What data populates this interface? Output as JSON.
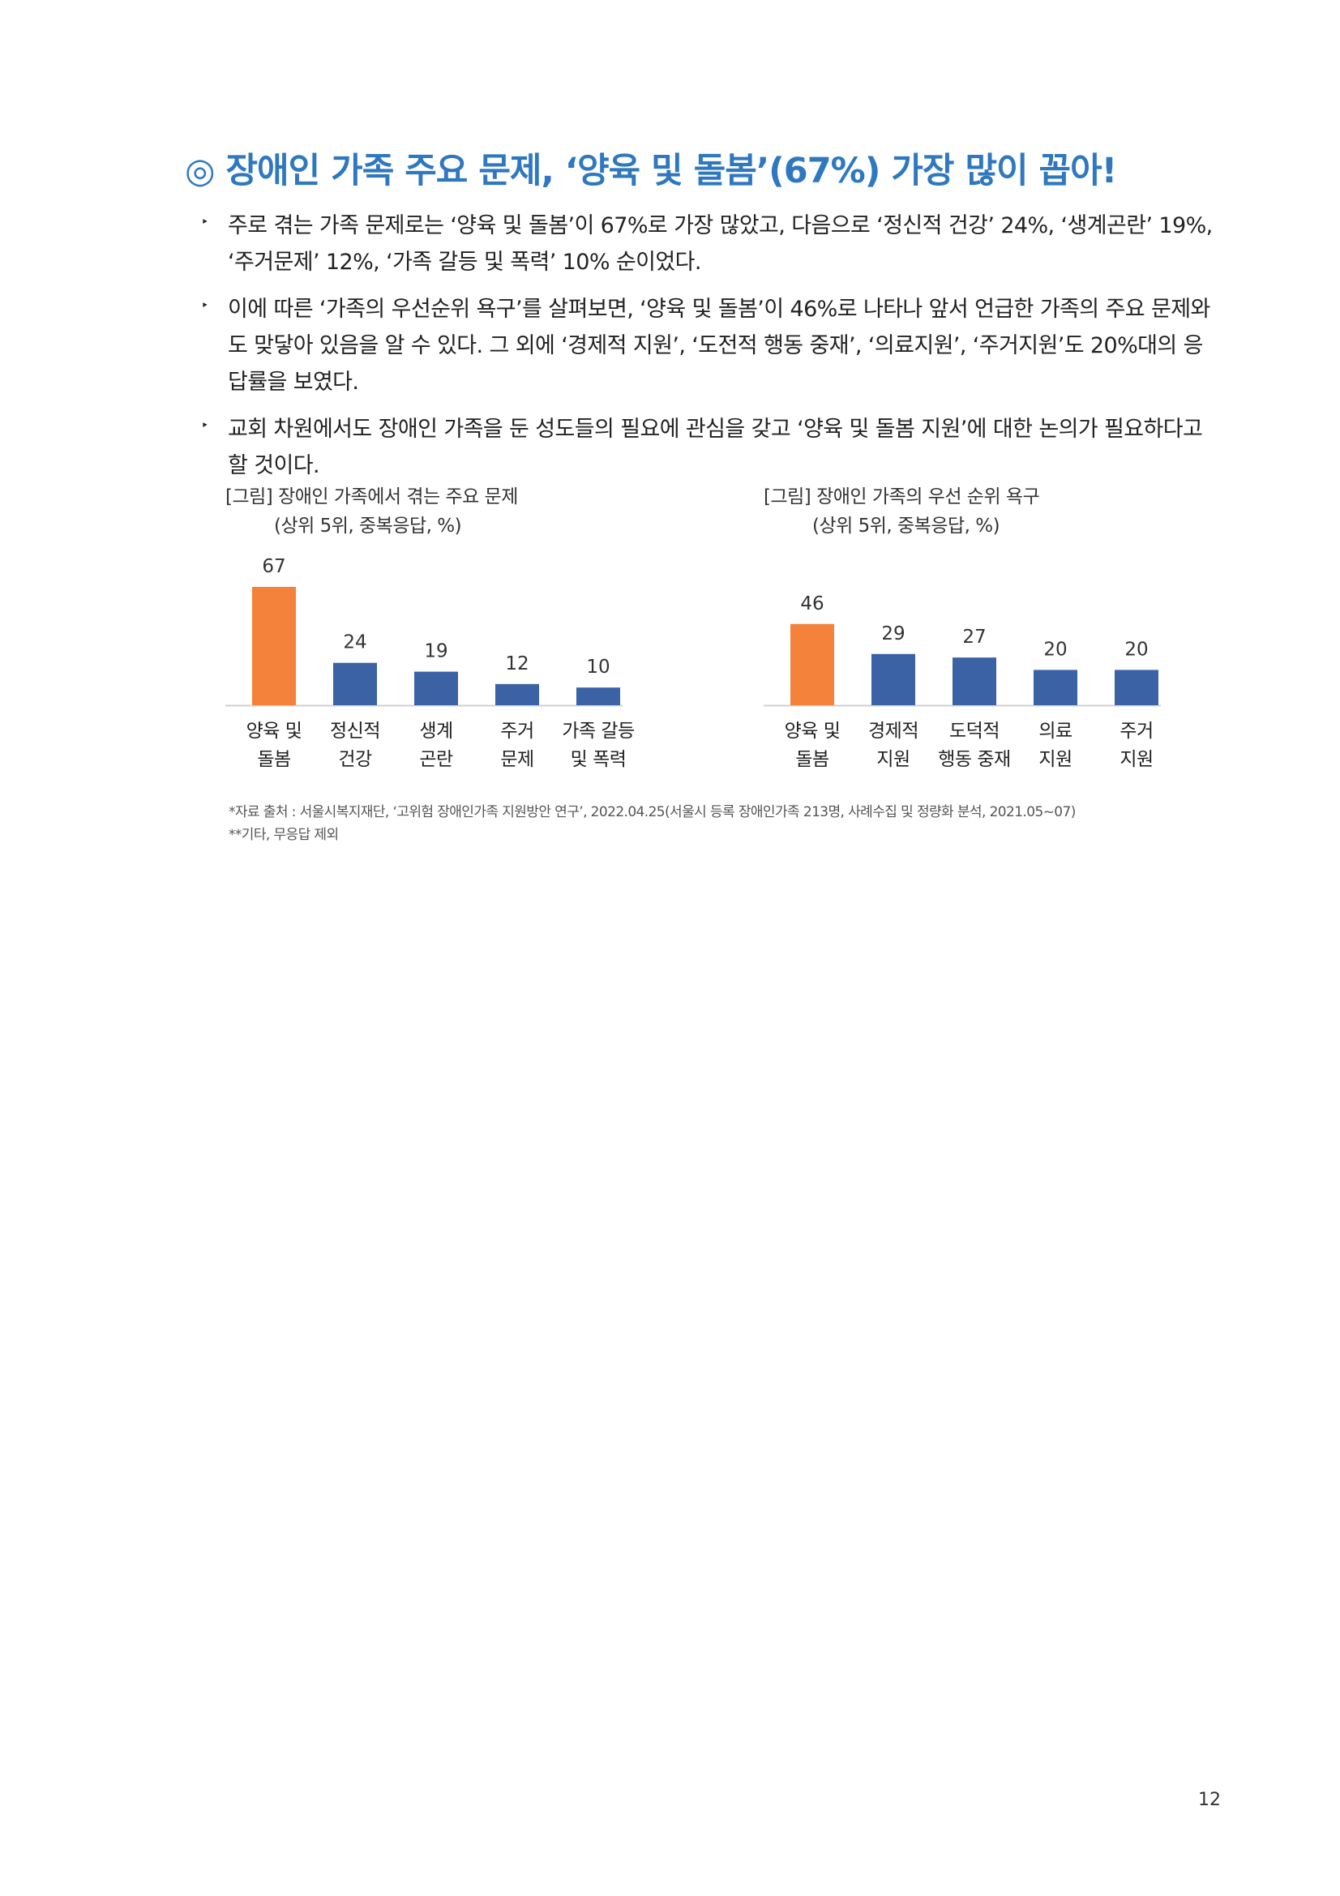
{
  "heading": "◎ 장애인 가족 주요 문제, ‘양육 및 돌봄’(67%) 가장 많이 꼽아!",
  "bullets": [
    {
      "marker": "‣",
      "text": "주로 겪는 가족 문제로는 ‘양육 및 돌봄’이 67%로 가장 많았고, 다음으로 ‘정신적 건강’ 24%, ‘생계곤란’ 19%, ‘주거문제’ 12%, ‘가족 갈등 및 폭력’ 10% 순이었다."
    },
    {
      "marker": "‣",
      "text": "이에 따른 ‘가족의 우선순위 욕구’를 살펴보면, ‘양육 및 돌봄’이 46%로 나타나 앞서 언급한 가족의 주요 문제와도 맞닿아 있음을 알 수 있다. 그 외에 ‘경제적 지원’, ‘도전적 행동 중재’, ‘의료지원’, ‘주거지원’도 20%대의 응답률을 보였다."
    },
    {
      "marker": "‣",
      "text": "교회 차원에서도 장애인 가족을 둔 성도들의 필요에 관심을 갖고 ‘양육 및 돌봄 지원’에 대한 논의가 필요하다고 할 것이다."
    }
  ],
  "chart_data": [
    {
      "type": "bar",
      "title": "[그림] 장애인 가족에서 겪는 주요 문제",
      "subtitle": "(상위 5위, 중복응답, %)",
      "categories": [
        [
          "양육 및",
          "돌봄"
        ],
        [
          "정신적",
          "건강"
        ],
        [
          "생계",
          "곤란"
        ],
        [
          "주거",
          "문제"
        ],
        [
          "가족 갈등",
          "및 폭력"
        ]
      ],
      "values": [
        67,
        24,
        19,
        12,
        10
      ],
      "colors": [
        "#f5823a",
        "#3a62a4",
        "#3a62a4",
        "#3a62a4",
        "#3a62a4"
      ],
      "ylim": [
        0,
        70
      ],
      "grid": false
    },
    {
      "type": "bar",
      "title": "[그림] 장애인 가족의 우선 순위 욕구",
      "subtitle": "(상위 5위, 중복응답, %)",
      "categories": [
        [
          "양육 및",
          "돌봄"
        ],
        [
          "경제적",
          "지원"
        ],
        [
          "도덕적",
          "행동 중재"
        ],
        [
          "의료",
          "지원"
        ],
        [
          "주거",
          "지원"
        ]
      ],
      "values": [
        46,
        29,
        27,
        20,
        20
      ],
      "colors": [
        "#f5823a",
        "#3a62a4",
        "#3a62a4",
        "#3a62a4",
        "#3a62a4"
      ],
      "ylim": [
        0,
        70
      ],
      "grid": false
    }
  ],
  "source": {
    "line1": "*자료 출처 : 서울시복지재단, ‘고위험 장애인가족 지원방안 연구’, 2022.04.25(서울시 등록 장애인가족 213명, 사례수집 및 정량화 분석, 2021.05~07)",
    "line2": "**기타, 무응답 제외"
  },
  "page_number": "12"
}
